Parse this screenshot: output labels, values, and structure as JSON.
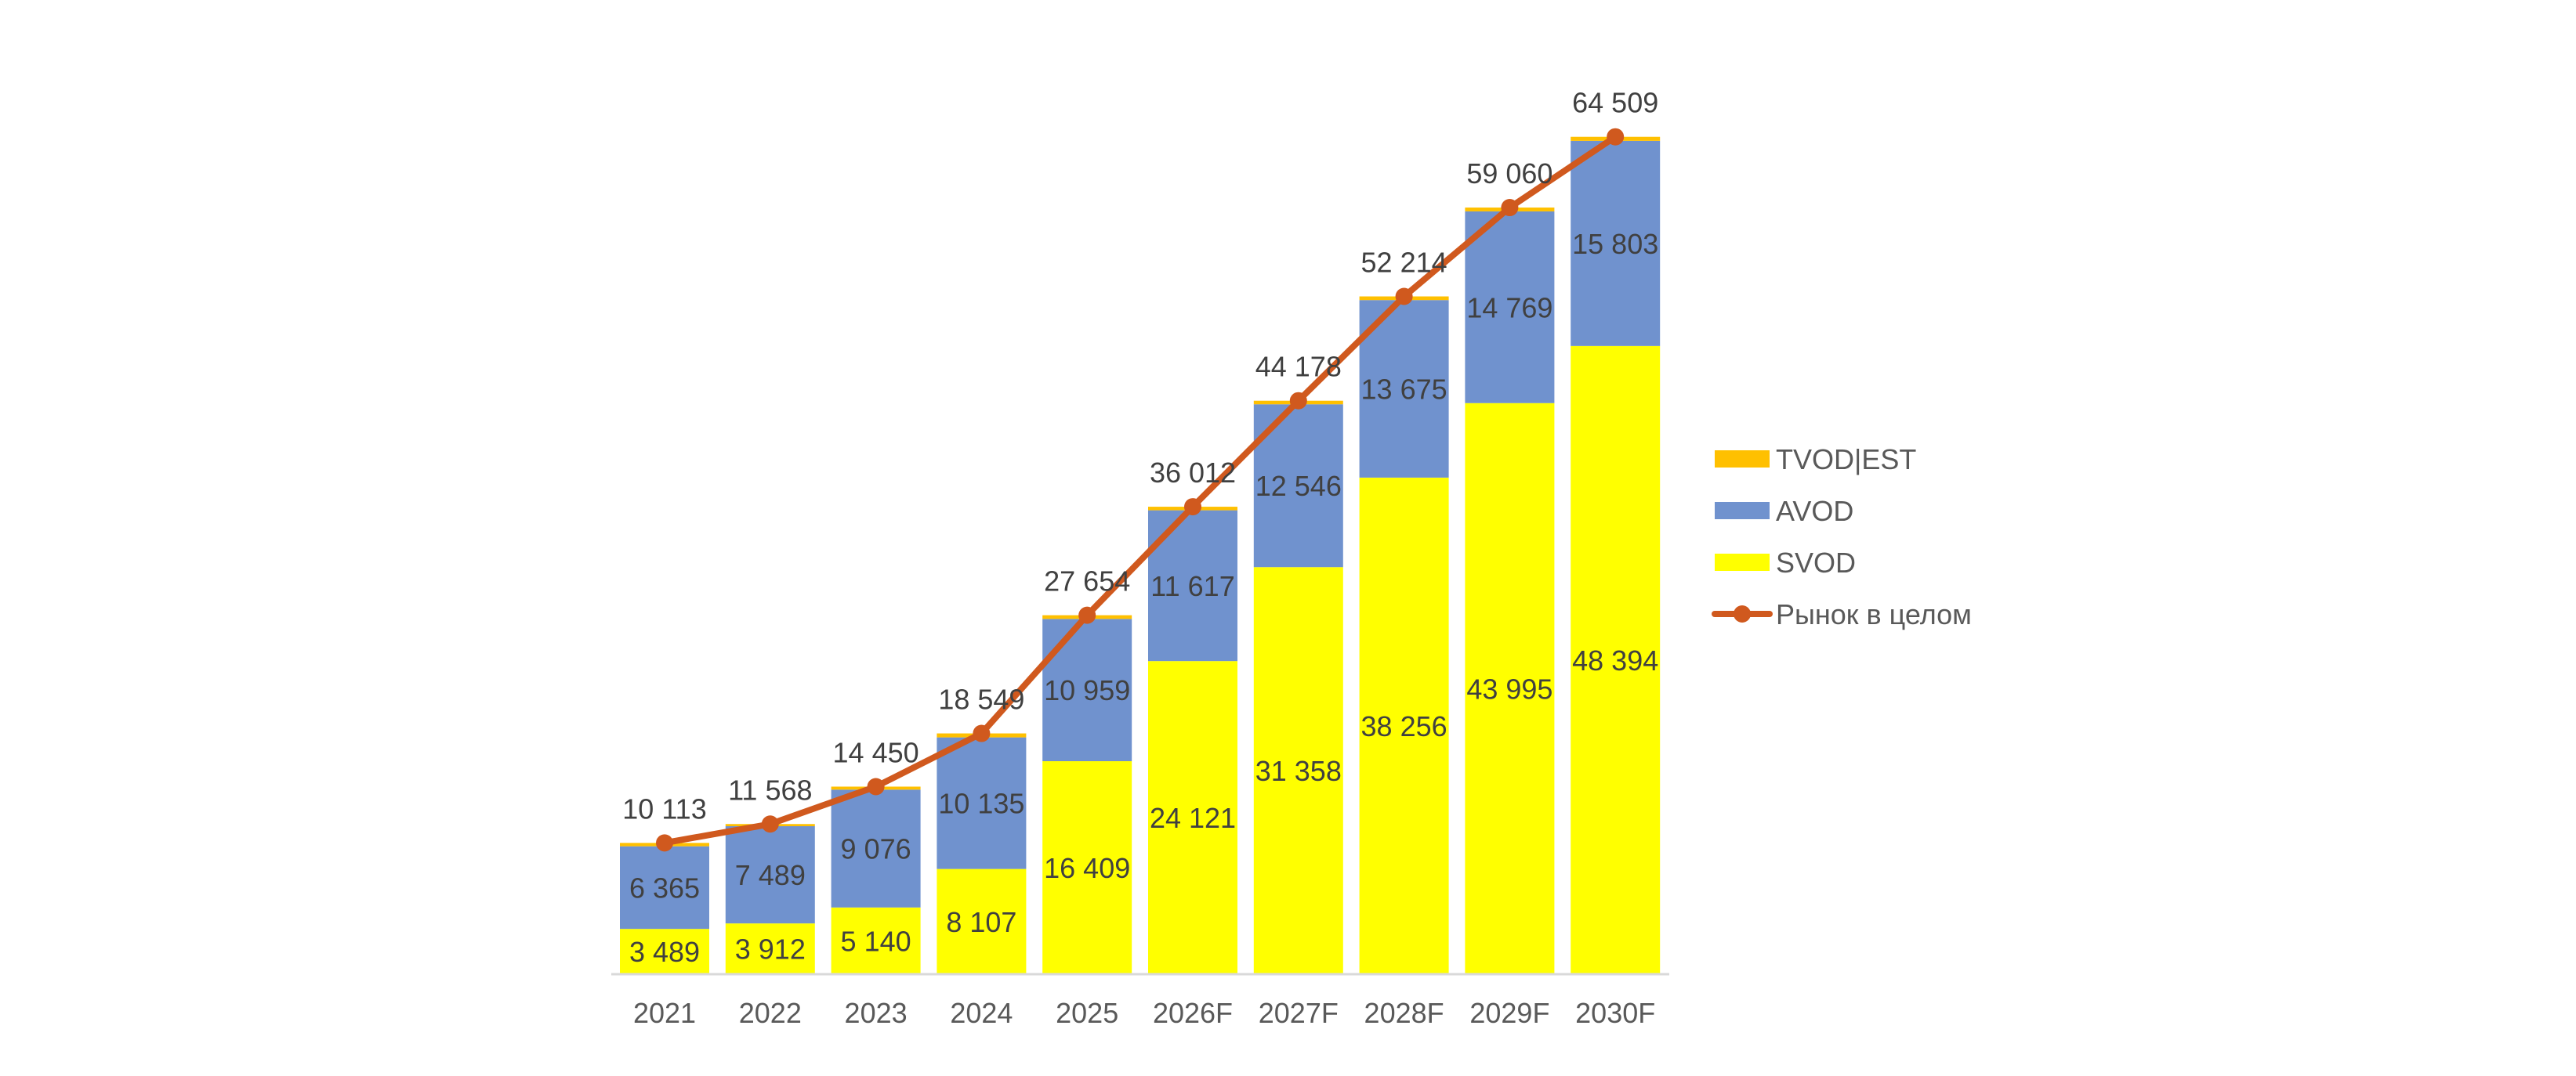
{
  "chart_data": {
    "type": "bar",
    "stacked": true,
    "categories": [
      "2021",
      "2022",
      "2023",
      "2024",
      "2025",
      "2026F",
      "2027F",
      "2028F",
      "2029F",
      "2030F"
    ],
    "series": [
      {
        "name": "SVOD",
        "kind": "bar",
        "color": "#FFFF00",
        "values": [
          3489,
          3912,
          5140,
          8107,
          16409,
          24121,
          31358,
          38256,
          43995,
          48394
        ],
        "labels": [
          "3 489",
          "3 912",
          "5 140",
          "8 107",
          "16 409",
          "24 121",
          "31 358",
          "38 256",
          "43 995",
          "48 394"
        ]
      },
      {
        "name": "AVOD",
        "kind": "bar",
        "color": "#7092CE",
        "values": [
          6365,
          7489,
          9076,
          10135,
          10959,
          11617,
          12546,
          13675,
          14769,
          15803
        ],
        "labels": [
          "6 365",
          "7 489",
          "9 076",
          "10 135",
          "10 959",
          "11 617",
          "12 546",
          "13 675",
          "14 769",
          "15 803"
        ]
      },
      {
        "name": "TVOD|EST",
        "kind": "bar",
        "color": "#FFC000",
        "values": [
          259,
          167,
          234,
          307,
          286,
          274,
          274,
          283,
          296,
          312
        ]
      },
      {
        "name": "Рынок в целом",
        "kind": "line",
        "color": "#D0591E",
        "values": [
          10113,
          11568,
          14450,
          18549,
          27654,
          36012,
          44178,
          52214,
          59060,
          64509
        ],
        "labels": [
          "10 113",
          "11 568",
          "14 450",
          "18 549",
          "27 654",
          "36 012",
          "44 178",
          "52 214",
          "59 060",
          "64 509"
        ]
      }
    ],
    "legend_order": [
      "TVOD|EST",
      "AVOD",
      "SVOD",
      "Рынок в целом"
    ],
    "ylim": [
      0,
      66000
    ],
    "grid": false,
    "legend_position": "right"
  }
}
